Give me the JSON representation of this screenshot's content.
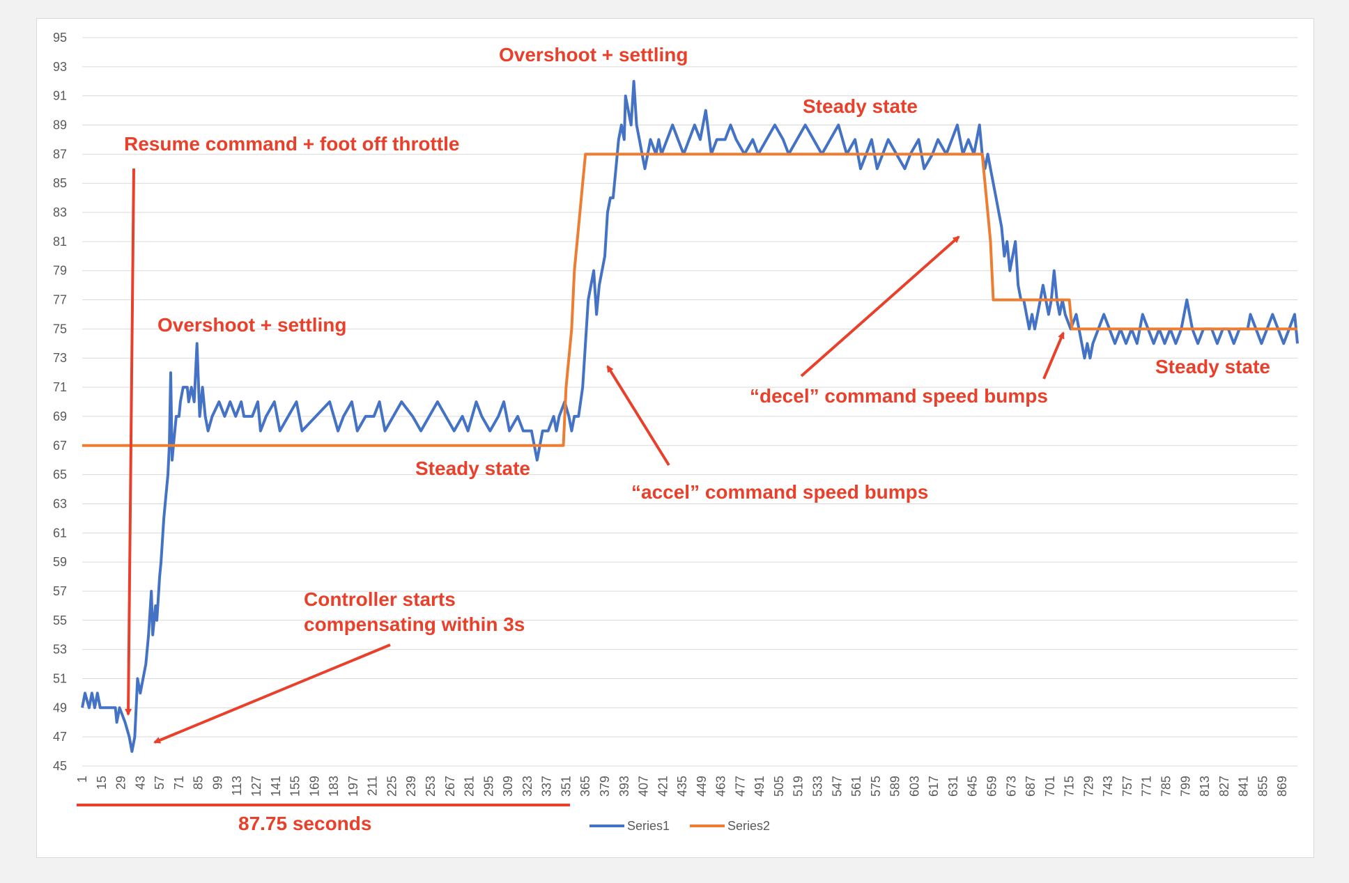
{
  "colors": {
    "series1": "#4472c4",
    "series2": "#ed7d31",
    "annotation": "#e8402a",
    "grid": "#d9d9d9",
    "text": "#595959"
  },
  "chart_data": {
    "type": "line",
    "x_range": [
      1,
      880
    ],
    "ylim": [
      45,
      95
    ],
    "y_ticks": [
      45,
      47,
      49,
      51,
      53,
      55,
      57,
      59,
      61,
      63,
      65,
      67,
      69,
      71,
      73,
      75,
      77,
      79,
      81,
      83,
      85,
      87,
      89,
      91,
      93,
      95
    ],
    "x_ticks": [
      1,
      15,
      29,
      43,
      57,
      71,
      85,
      99,
      113,
      127,
      141,
      155,
      169,
      183,
      197,
      211,
      225,
      239,
      253,
      267,
      281,
      295,
      309,
      323,
      337,
      351,
      365,
      379,
      393,
      407,
      421,
      435,
      449,
      463,
      477,
      491,
      505,
      519,
      533,
      547,
      561,
      575,
      589,
      603,
      617,
      631,
      645,
      659,
      673,
      687,
      701,
      715,
      729,
      743,
      757,
      771,
      785,
      799,
      813,
      827,
      841,
      855,
      869
    ],
    "grid": "horizontal",
    "legend": "bottom",
    "series": [
      {
        "name": "Series1",
        "color": "#4472c4",
        "points": [
          [
            1,
            49
          ],
          [
            3,
            50
          ],
          [
            6,
            49
          ],
          [
            8,
            50
          ],
          [
            10,
            49
          ],
          [
            12,
            50
          ],
          [
            14,
            49
          ],
          [
            20,
            49
          ],
          [
            25,
            49
          ],
          [
            26,
            48
          ],
          [
            28,
            49
          ],
          [
            32,
            48
          ],
          [
            35,
            47
          ],
          [
            37,
            46
          ],
          [
            39,
            47
          ],
          [
            41,
            51
          ],
          [
            43,
            50
          ],
          [
            45,
            51
          ],
          [
            47,
            52
          ],
          [
            49,
            54
          ],
          [
            51,
            57
          ],
          [
            52,
            54
          ],
          [
            54,
            56
          ],
          [
            55,
            55
          ],
          [
            57,
            58
          ],
          [
            58,
            59
          ],
          [
            60,
            62
          ],
          [
            62,
            64
          ],
          [
            63,
            65
          ],
          [
            64,
            67
          ],
          [
            65,
            72
          ],
          [
            66,
            66
          ],
          [
            67,
            67
          ],
          [
            68,
            68
          ],
          [
            69,
            69
          ],
          [
            71,
            69
          ],
          [
            72,
            70
          ],
          [
            74,
            71
          ],
          [
            77,
            71
          ],
          [
            78,
            70
          ],
          [
            80,
            71
          ],
          [
            82,
            70
          ],
          [
            84,
            74
          ],
          [
            86,
            69
          ],
          [
            88,
            71
          ],
          [
            90,
            69
          ],
          [
            92,
            68
          ],
          [
            95,
            69
          ],
          [
            100,
            70
          ],
          [
            104,
            69
          ],
          [
            108,
            70
          ],
          [
            112,
            69
          ],
          [
            116,
            70
          ],
          [
            118,
            69
          ],
          [
            124,
            69
          ],
          [
            128,
            70
          ],
          [
            130,
            68
          ],
          [
            134,
            69
          ],
          [
            140,
            70
          ],
          [
            144,
            68
          ],
          [
            150,
            69
          ],
          [
            156,
            70
          ],
          [
            160,
            68
          ],
          [
            170,
            69
          ],
          [
            180,
            70
          ],
          [
            186,
            68
          ],
          [
            190,
            69
          ],
          [
            196,
            70
          ],
          [
            200,
            68
          ],
          [
            206,
            69
          ],
          [
            212,
            69
          ],
          [
            216,
            70
          ],
          [
            220,
            68
          ],
          [
            226,
            69
          ],
          [
            232,
            70
          ],
          [
            240,
            69
          ],
          [
            246,
            68
          ],
          [
            252,
            69
          ],
          [
            258,
            70
          ],
          [
            264,
            69
          ],
          [
            270,
            68
          ],
          [
            276,
            69
          ],
          [
            280,
            68
          ],
          [
            286,
            70
          ],
          [
            290,
            69
          ],
          [
            296,
            68
          ],
          [
            302,
            69
          ],
          [
            306,
            70
          ],
          [
            310,
            68
          ],
          [
            316,
            69
          ],
          [
            320,
            68
          ],
          [
            326,
            68
          ],
          [
            330,
            66
          ],
          [
            334,
            68
          ],
          [
            338,
            68
          ],
          [
            342,
            69
          ],
          [
            344,
            68
          ],
          [
            346,
            69
          ],
          [
            350,
            70
          ],
          [
            353,
            69
          ],
          [
            355,
            68
          ],
          [
            357,
            69
          ],
          [
            360,
            69
          ],
          [
            363,
            71
          ],
          [
            365,
            74
          ],
          [
            367,
            77
          ],
          [
            369,
            78
          ],
          [
            371,
            79
          ],
          [
            373,
            76
          ],
          [
            375,
            78
          ],
          [
            377,
            79
          ],
          [
            379,
            80
          ],
          [
            381,
            83
          ],
          [
            383,
            84
          ],
          [
            385,
            84
          ],
          [
            387,
            86
          ],
          [
            389,
            88
          ],
          [
            391,
            89
          ],
          [
            393,
            88
          ],
          [
            394,
            91
          ],
          [
            396,
            90
          ],
          [
            398,
            89
          ],
          [
            400,
            92
          ],
          [
            402,
            89
          ],
          [
            404,
            88
          ],
          [
            406,
            87
          ],
          [
            408,
            86
          ],
          [
            412,
            88
          ],
          [
            416,
            87
          ],
          [
            418,
            88
          ],
          [
            420,
            87
          ],
          [
            424,
            88
          ],
          [
            428,
            89
          ],
          [
            432,
            88
          ],
          [
            436,
            87
          ],
          [
            440,
            88
          ],
          [
            444,
            89
          ],
          [
            448,
            88
          ],
          [
            452,
            90
          ],
          [
            456,
            87
          ],
          [
            460,
            88
          ],
          [
            466,
            88
          ],
          [
            470,
            89
          ],
          [
            474,
            88
          ],
          [
            480,
            87
          ],
          [
            486,
            88
          ],
          [
            490,
            87
          ],
          [
            496,
            88
          ],
          [
            502,
            89
          ],
          [
            508,
            88
          ],
          [
            512,
            87
          ],
          [
            518,
            88
          ],
          [
            524,
            89
          ],
          [
            530,
            88
          ],
          [
            536,
            87
          ],
          [
            542,
            88
          ],
          [
            548,
            89
          ],
          [
            554,
            87
          ],
          [
            560,
            88
          ],
          [
            564,
            86
          ],
          [
            568,
            87
          ],
          [
            572,
            88
          ],
          [
            576,
            86
          ],
          [
            580,
            87
          ],
          [
            584,
            88
          ],
          [
            590,
            87
          ],
          [
            596,
            86
          ],
          [
            600,
            87
          ],
          [
            606,
            88
          ],
          [
            610,
            86
          ],
          [
            616,
            87
          ],
          [
            620,
            88
          ],
          [
            626,
            87
          ],
          [
            630,
            88
          ],
          [
            634,
            89
          ],
          [
            638,
            87
          ],
          [
            642,
            88
          ],
          [
            646,
            87
          ],
          [
            650,
            89
          ],
          [
            652,
            87
          ],
          [
            654,
            86
          ],
          [
            656,
            87
          ],
          [
            658,
            86
          ],
          [
            660,
            85
          ],
          [
            662,
            84
          ],
          [
            664,
            83
          ],
          [
            666,
            82
          ],
          [
            668,
            80
          ],
          [
            670,
            81
          ],
          [
            672,
            79
          ],
          [
            674,
            80
          ],
          [
            676,
            81
          ],
          [
            678,
            78
          ],
          [
            680,
            77
          ],
          [
            682,
            77
          ],
          [
            684,
            76
          ],
          [
            686,
            75
          ],
          [
            688,
            76
          ],
          [
            690,
            75
          ],
          [
            692,
            76
          ],
          [
            694,
            77
          ],
          [
            696,
            78
          ],
          [
            698,
            77
          ],
          [
            700,
            76
          ],
          [
            702,
            77
          ],
          [
            704,
            79
          ],
          [
            706,
            77
          ],
          [
            708,
            76
          ],
          [
            710,
            77
          ],
          [
            712,
            76
          ],
          [
            716,
            75
          ],
          [
            720,
            76
          ],
          [
            722,
            75
          ],
          [
            724,
            74
          ],
          [
            726,
            73
          ],
          [
            728,
            74
          ],
          [
            730,
            73
          ],
          [
            732,
            74
          ],
          [
            736,
            75
          ],
          [
            740,
            76
          ],
          [
            744,
            75
          ],
          [
            748,
            74
          ],
          [
            752,
            75
          ],
          [
            756,
            74
          ],
          [
            760,
            75
          ],
          [
            764,
            74
          ],
          [
            768,
            76
          ],
          [
            772,
            75
          ],
          [
            776,
            74
          ],
          [
            780,
            75
          ],
          [
            784,
            74
          ],
          [
            788,
            75
          ],
          [
            792,
            74
          ],
          [
            796,
            75
          ],
          [
            800,
            77
          ],
          [
            804,
            75
          ],
          [
            808,
            74
          ],
          [
            812,
            75
          ],
          [
            818,
            75
          ],
          [
            822,
            74
          ],
          [
            826,
            75
          ],
          [
            830,
            75
          ],
          [
            834,
            74
          ],
          [
            838,
            75
          ],
          [
            844,
            75
          ],
          [
            846,
            76
          ],
          [
            850,
            75
          ],
          [
            854,
            74
          ],
          [
            858,
            75
          ],
          [
            862,
            76
          ],
          [
            866,
            75
          ],
          [
            870,
            74
          ],
          [
            874,
            75
          ],
          [
            878,
            76
          ],
          [
            880,
            74
          ]
        ]
      },
      {
        "name": "Series2",
        "color": "#ed7d31",
        "points": [
          [
            1,
            67
          ],
          [
            349,
            67
          ],
          [
            351,
            71
          ],
          [
            353,
            73
          ],
          [
            355,
            75
          ],
          [
            357,
            79
          ],
          [
            359,
            81
          ],
          [
            361,
            83
          ],
          [
            363,
            85
          ],
          [
            365,
            87
          ],
          [
            652,
            87
          ],
          [
            654,
            85
          ],
          [
            656,
            83
          ],
          [
            658,
            81
          ],
          [
            660,
            77
          ],
          [
            715,
            77
          ],
          [
            717,
            75
          ],
          [
            880,
            75
          ]
        ]
      }
    ]
  },
  "annotations": {
    "resume": "Resume command + foot off throttle",
    "overshoot1": "Overshoot + settling",
    "overshoot2": "Overshoot + settling",
    "steady1": "Steady state",
    "steady2": "Steady state",
    "steady3": "Steady state",
    "controller_line1": "Controller starts",
    "controller_line2": "compensating within 3s",
    "accel": "“accel” command speed bumps",
    "decel": "“decel” command speed bumps",
    "duration": "87.75 seconds"
  },
  "legend": {
    "series1": "Series1",
    "series2": "Series2"
  }
}
